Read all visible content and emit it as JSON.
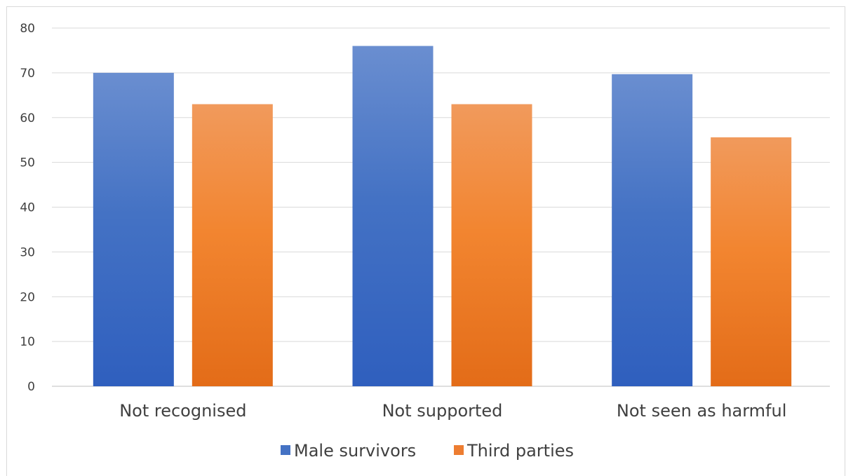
{
  "chart_data": {
    "type": "bar",
    "title": "",
    "xlabel": "",
    "ylabel": "",
    "categories": [
      "Not recognised",
      "Not supported",
      "Not seen as harmful"
    ],
    "series": [
      {
        "name": "Male survivors",
        "values": [
          70,
          76,
          69.7
        ],
        "color": "#4472c4"
      },
      {
        "name": "Third parties",
        "values": [
          63,
          63,
          55.6
        ],
        "color": "#ed7d31"
      }
    ],
    "ylim": [
      0,
      80
    ],
    "yticks": [
      "0",
      "10",
      "20",
      "30",
      "40",
      "50",
      "60",
      "70",
      "80"
    ],
    "grid": true,
    "legend": "bottom"
  }
}
